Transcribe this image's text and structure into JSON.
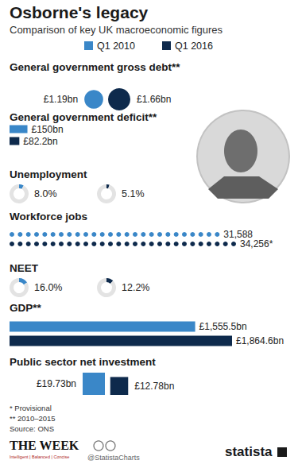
{
  "header": {
    "title": "Osborne's legacy",
    "subtitle": "Comparison of key UK macroeconomic figures"
  },
  "legend": [
    {
      "name": "Q1 2010",
      "color": "#3a87c8"
    },
    {
      "name": "Q1 2016",
      "color": "#0e2a4c"
    }
  ],
  "chart_data": [
    {
      "type": "bubble",
      "title": "General government gross debt**",
      "values": [
        1.19,
        1.66
      ],
      "value_labels": [
        "£1.19bn",
        "£1.66bn"
      ],
      "data_labels": true
    },
    {
      "type": "bar",
      "orientation": "horizontal",
      "title": "General government deficit**",
      "values": [
        150,
        82.2
      ],
      "value_labels": [
        "£150bn",
        "£82.2bn"
      ],
      "data_labels": true
    },
    {
      "type": "donut",
      "title": "Unemployment",
      "values": [
        8.0,
        5.1
      ],
      "value_labels": [
        "8.0%",
        "5.1%"
      ],
      "data_labels": true
    },
    {
      "type": "dots",
      "orientation": "horizontal",
      "title": "Workforce jobs",
      "values": [
        31588,
        34256
      ],
      "value_labels": [
        "31,588",
        "34,256*"
      ],
      "data_labels": true
    },
    {
      "type": "donut",
      "title": "NEET",
      "values": [
        16.0,
        12.2
      ],
      "value_labels": [
        "16.0%",
        "12.2%"
      ],
      "data_labels": true
    },
    {
      "type": "bar",
      "orientation": "horizontal",
      "title": "GDP**",
      "values": [
        1555.5,
        1864.6
      ],
      "value_labels": [
        "£1,555.5bn",
        "£1,864.6bn"
      ],
      "data_labels": true
    },
    {
      "type": "square",
      "title": "Public sector net investment",
      "values": [
        19.73,
        12.78
      ],
      "value_labels": [
        "£19.73bn",
        "£12.78bn"
      ],
      "data_labels": true
    }
  ],
  "footer": {
    "notes": [
      "* Provisional",
      "** 2010–2015"
    ],
    "source": "Source: ONS",
    "credits": [
      "THE WEEK",
      "Intelligent | Balanced | Concise",
      "@StatistaCharts",
      "statista"
    ]
  }
}
